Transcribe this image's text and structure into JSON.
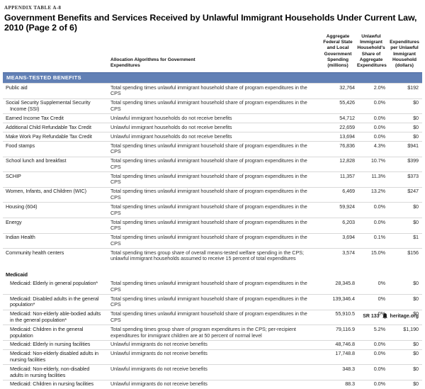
{
  "page": {
    "kicker": "APPENDIX TABLE A-8",
    "title": "Government Benefits and Services Received by Unlawful Immigrant Households Under Current Law, 2010 (Page 2 of 6)",
    "footer": {
      "report_id": "SR 133",
      "site": "heritage.org"
    }
  },
  "table": {
    "columns": {
      "algorithm": "Allocation Algorithms for Government Expenditures",
      "spending": "Aggregate Federal State and Local Government Spending (millions)",
      "share": "Unlawful Immigrant Household's Share of Aggregate Expenditures",
      "per_household": "Expenditures per Unlawful Immigrant Household (dollars)"
    },
    "sections": [
      {
        "banner": "MEANS-TESTED BENEFITS",
        "indent": false,
        "rows": [
          {
            "program": "Public aid",
            "algorithm": "Total spending times unlawful immigrant household share of program expenditures in the CPS",
            "spending": "32,764",
            "share": "2.0%",
            "per_household": "$192"
          },
          {
            "program": "Social Security Supplemental Security Income (SSI)",
            "algorithm": "Total spending times unlawful immigrant household share of program expenditures in the CPS",
            "spending": "55,426",
            "share": "0.0%",
            "per_household": "$0"
          },
          {
            "program": "Earned Income Tax Credit",
            "algorithm": "Unlawful immigrant households do not receive benefits",
            "spending": "54,712",
            "share": "0.0%",
            "per_household": "$0"
          },
          {
            "program": "Additional Child Refundable Tax Credit",
            "algorithm": "Unlawful immigrant households do not receive benefits",
            "spending": "22,659",
            "share": "0.0%",
            "per_household": "$0"
          },
          {
            "program": "Make Work Pay Refundable Tax Credit",
            "algorithm": "Unlawful immigrant households do not receive benefits",
            "spending": "13,694",
            "share": "0.0%",
            "per_household": "$0"
          },
          {
            "program": "Food stamps",
            "algorithm": "Total spending times unlawful immigrant household share of program expenditures in the CPS",
            "spending": "76,836",
            "share": "4.3%",
            "per_household": "$941"
          },
          {
            "program": "School lunch and breakfast",
            "algorithm": "Total spending times unlawful immigrant household share of program expenditures in the CPS",
            "spending": "12,828",
            "share": "10.7%",
            "per_household": "$399"
          },
          {
            "program": "SCHIP",
            "algorithm": "Total spending times unlawful immigrant household share of program expenditures in the CPS",
            "spending": "11,357",
            "share": "11.3%",
            "per_household": "$373"
          },
          {
            "program": "Women, Infants, and Children (WIC)",
            "algorithm": "Total spending times unlawful immigrant household share of program expenditures in the CPS",
            "spending": "6,469",
            "share": "13.2%",
            "per_household": "$247"
          },
          {
            "program": "Housing (604)",
            "algorithm": "Total spending times unlawful immigrant household share of program expenditures in the CPS",
            "spending": "59,924",
            "share": "0.0%",
            "per_household": "$0"
          },
          {
            "program": "Energy",
            "algorithm": "Total spending times unlawful immigrant household share of program expenditures in the CPS",
            "spending": "6,203",
            "share": "0.0%",
            "per_household": "$0"
          },
          {
            "program": "Indian Health",
            "algorithm": "Total spending times unlawful immigrant household share of program expenditures in the CPS",
            "spending": "3,694",
            "share": "0.1%",
            "per_household": "$1"
          },
          {
            "program": "Community health centers",
            "algorithm": "Total spending times group share of overall means-tested welfare spending in the CPS; unlawful immigrant households assumed to receive 15 percent of total expenditures",
            "spending": "3,574",
            "share": "15.0%",
            "per_household": "$156"
          }
        ]
      },
      {
        "subheader": "Medicaid",
        "indent": true,
        "rows": [
          {
            "program": "Medicaid: Elderly in general population*",
            "algorithm": "Total spending times unlawful immigrant household share of program expenditures in the CPS",
            "spending": "28,345.8",
            "share": "0%",
            "per_household": "$0"
          },
          {
            "program": "Medicaid: Disabled adults in the general population*",
            "algorithm": "Total spending times unlawful immigrant household share of program expenditures in the CPS",
            "spending": "139,346.4",
            "share": "0%",
            "per_household": "$0"
          },
          {
            "program": "Medicaid: Non-elderly able-bodied adults in the general population*",
            "algorithm": "Total spending times unlawful immigrant household share of program expenditures in the CPS",
            "spending": "55,910.5",
            "share": "0%",
            "per_household": "$0"
          },
          {
            "program": "Medicaid: Children in the general population",
            "algorithm": "Total spending times group share of program expenditures in the CPS; per-recipient expenditures for immigrant children are at 50 percent of normal level",
            "spending": "79,116.9",
            "share": "5.2%",
            "per_household": "$1,190"
          },
          {
            "program": "Medicaid: Elderly in nursing facilities",
            "algorithm": "Unlawful immigrants do not receive benefits",
            "spending": "48,746.8",
            "share": "0.0%",
            "per_household": "$0"
          },
          {
            "program": "Medicaid: Non-elderly disabled adults in nursing facilities",
            "algorithm": "Unlawful immigrants do not receive benefits",
            "spending": "17,748.8",
            "share": "0.0%",
            "per_household": "$0"
          },
          {
            "program": "Medicaid: Non-elderly, non-disabled adults in nursing facilities",
            "algorithm": "Unlawful immigrants do not receive benefits",
            "spending": "348.3",
            "share": "0.0%",
            "per_household": "$0"
          },
          {
            "program": "Medicaid: Children in nursing facilities",
            "algorithm": "Unlawful immigrants do not receive benefits",
            "spending": "88.3",
            "share": "0.0%",
            "per_household": "$0"
          }
        ]
      }
    ]
  }
}
